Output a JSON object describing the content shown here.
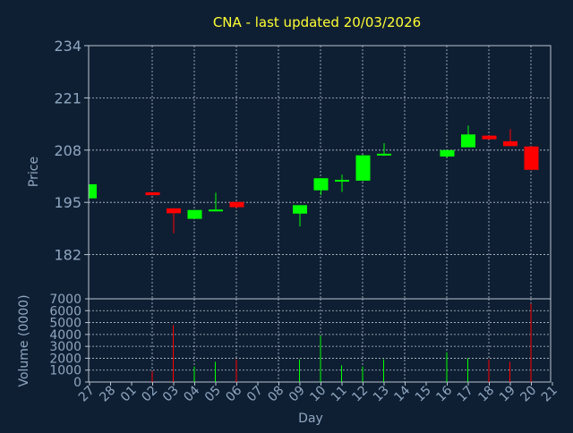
{
  "chart_data": {
    "type": "candlestick",
    "title": "CNA - last updated 20/03/2026",
    "xlabel": "Day",
    "price_panel": {
      "ylabel": "Price",
      "ylim": [
        171,
        234
      ],
      "yticks": [
        234,
        221,
        208,
        195,
        182
      ]
    },
    "volume_panel": {
      "ylabel": "Volume (0000)",
      "ylim": [
        0,
        7000
      ],
      "yticks": [
        7000,
        6000,
        5000,
        4000,
        3000,
        2000,
        1000,
        0
      ]
    },
    "x_labels": [
      "27",
      "28",
      "01",
      "02",
      "03",
      "04",
      "05",
      "06",
      "07",
      "08",
      "09",
      "10",
      "11",
      "12",
      "13",
      "14",
      "15",
      "16",
      "17",
      "18",
      "19",
      "20",
      "21"
    ],
    "grid": true,
    "colors": {
      "background": "#0f1f33",
      "axis": "#b9c4d0",
      "text": "#8fa7c0",
      "title": "#ffff33",
      "up": "#00ff00",
      "down": "#ff0000"
    },
    "candles": [
      {
        "x": 0,
        "open": 196.0,
        "close": 199.5,
        "high": 199.5,
        "low": 196.0,
        "volume": 0
      },
      {
        "x": 3,
        "open": 197.5,
        "close": 196.8,
        "high": 197.5,
        "low": 196.8,
        "volume": 900
      },
      {
        "x": 4,
        "open": 193.5,
        "close": 192.3,
        "high": 193.5,
        "low": 187.3,
        "volume": 4800
      },
      {
        "x": 5,
        "open": 190.9,
        "close": 193.1,
        "high": 193.1,
        "low": 190.9,
        "volume": 1300
      },
      {
        "x": 6,
        "open": 192.9,
        "close": 193.2,
        "high": 197.4,
        "low": 192.8,
        "volume": 1700
      },
      {
        "x": 7,
        "open": 195.1,
        "close": 193.8,
        "high": 195.1,
        "low": 193.5,
        "volume": 1900
      },
      {
        "x": 10,
        "open": 192.2,
        "close": 194.3,
        "high": 194.3,
        "low": 189.0,
        "volume": 1900
      },
      {
        "x": 11,
        "open": 198.0,
        "close": 201.0,
        "high": 201.0,
        "low": 196.8,
        "volume": 3900
      },
      {
        "x": 12,
        "open": 200.3,
        "close": 200.6,
        "high": 201.9,
        "low": 197.6,
        "volume": 1400
      },
      {
        "x": 13,
        "open": 200.4,
        "close": 206.7,
        "high": 206.8,
        "low": 200.3,
        "volume": 1300
      },
      {
        "x": 14,
        "open": 206.7,
        "close": 207.1,
        "high": 209.7,
        "low": 206.6,
        "volume": 1900
      },
      {
        "x": 17,
        "open": 206.4,
        "close": 208.0,
        "high": 208.0,
        "low": 206.2,
        "volume": 2500
      },
      {
        "x": 18,
        "open": 208.7,
        "close": 211.9,
        "high": 214.1,
        "low": 208.7,
        "volume": 2000
      },
      {
        "x": 19,
        "open": 211.6,
        "close": 210.7,
        "high": 211.6,
        "low": 210.6,
        "volume": 1900
      },
      {
        "x": 20,
        "open": 210.2,
        "close": 209.0,
        "high": 213.2,
        "low": 209.0,
        "volume": 1700
      },
      {
        "x": 21,
        "open": 208.9,
        "close": 203.1,
        "high": 209.0,
        "low": 203.0,
        "volume": 6600
      }
    ]
  }
}
